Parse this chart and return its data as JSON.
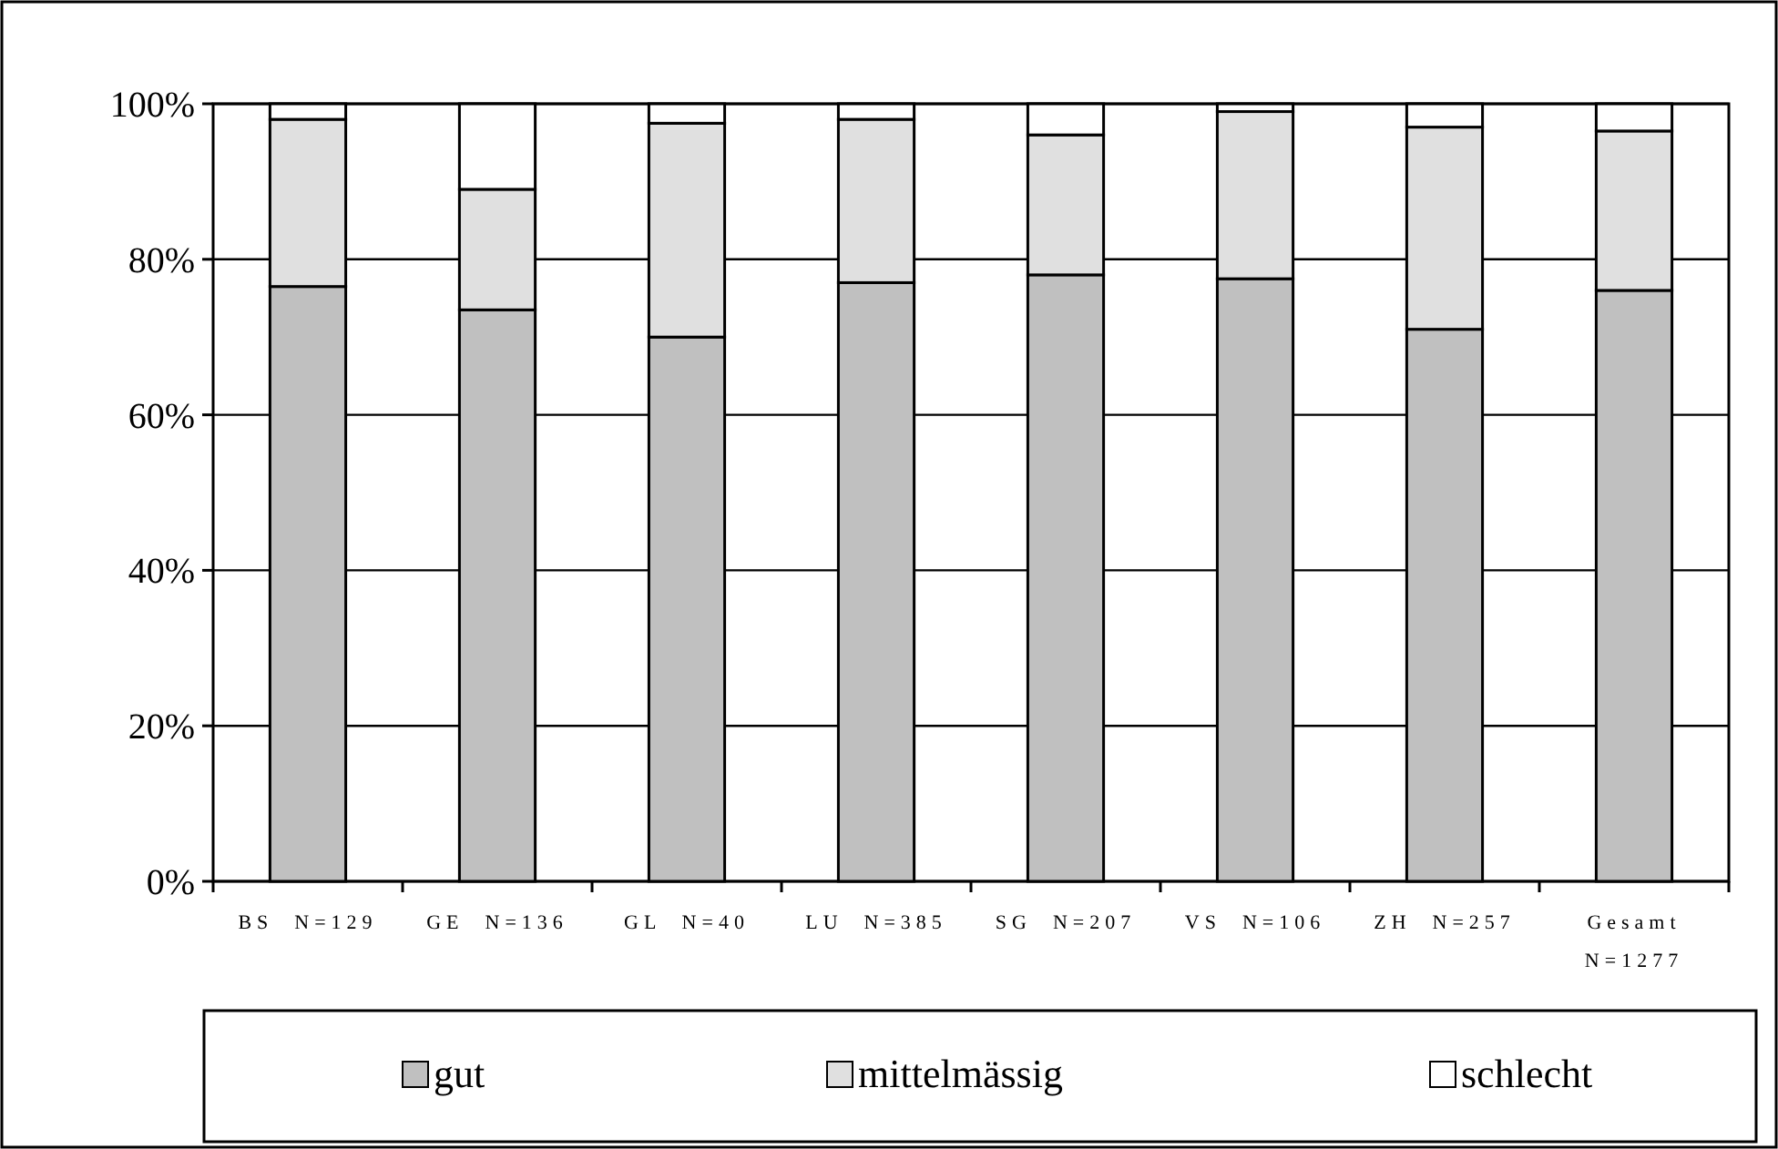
{
  "chart_data": {
    "type": "bar",
    "stacked": true,
    "categories": [
      "BS  N=129",
      "GE  N=136",
      "GL  N=40",
      "LU  N=385",
      "SG  N=207",
      "VS  N=106",
      "ZH  N=257",
      "Gesamt N=1277"
    ],
    "series": [
      {
        "name": "gut",
        "color": "#c0c0c0",
        "values": [
          76.5,
          73.5,
          70,
          77,
          78,
          77.5,
          71,
          76
        ]
      },
      {
        "name": "mittelmässig",
        "color": "#e0e0e0",
        "values": [
          21.5,
          15.5,
          27.5,
          21,
          18,
          21.5,
          26,
          20.5
        ]
      },
      {
        "name": "schlecht",
        "color": "#ffffff",
        "values": [
          2,
          11,
          2.5,
          2,
          4,
          1,
          3,
          3.5
        ]
      }
    ],
    "ylim": [
      0,
      100
    ],
    "yticks": [
      {
        "value": 0,
        "label": "0%"
      },
      {
        "value": 20,
        "label": "20%"
      },
      {
        "value": 40,
        "label": "40%"
      },
      {
        "value": 60,
        "label": "60%"
      },
      {
        "value": 80,
        "label": "80%"
      },
      {
        "value": 100,
        "label": "100%"
      }
    ],
    "grid": "y",
    "legend": "bottom"
  }
}
